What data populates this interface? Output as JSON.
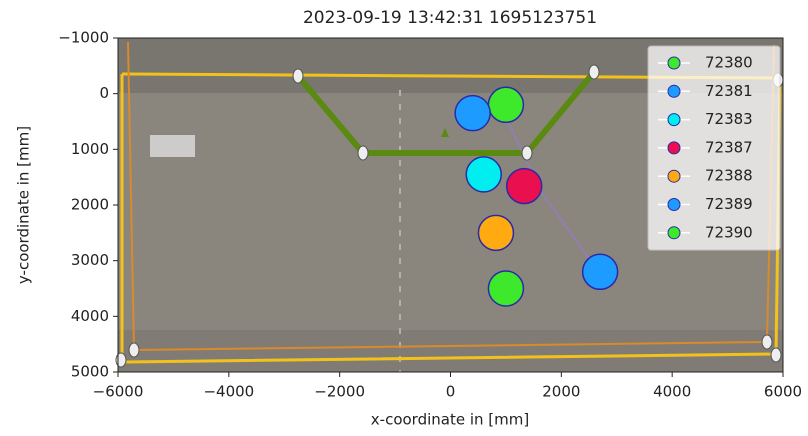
{
  "chart_data": {
    "type": "scatter",
    "title": "2023-09-19 13:42:31 1695123751",
    "x_label": "x-coordinate in [mm]",
    "y_label": "y-coordinate in [mm]",
    "xlim": [
      -6000,
      6000
    ],
    "ylim": [
      -1000,
      5000
    ],
    "y_inverted": true,
    "xticks": [
      {
        "value": -6000,
        "label": "−6000"
      },
      {
        "value": -4000,
        "label": "−4000"
      },
      {
        "value": -2000,
        "label": "−2000"
      },
      0,
      2000,
      4000,
      6000
    ],
    "yticks": [
      {
        "value": -1000,
        "label": "−1000"
      },
      0,
      1000,
      2000,
      3000,
      4000,
      5000
    ],
    "legend": "upper right",
    "series": [
      {
        "name": "72380",
        "color": "#3ee82a",
        "x": [
          1000
        ],
        "values": [
          200
        ]
      },
      {
        "name": "72381",
        "color": "#1e9bff",
        "x": [
          400
        ],
        "values": [
          350
        ]
      },
      {
        "name": "72383",
        "color": "#00eef0",
        "x": [
          600
        ],
        "values": [
          1450
        ]
      },
      {
        "name": "72387",
        "color": "#ea0f4e",
        "x": [
          1330
        ],
        "values": [
          1660
        ]
      },
      {
        "name": "72388",
        "color": "#ffaa11",
        "x": [
          820
        ],
        "values": [
          2500
        ]
      },
      {
        "name": "72389",
        "color": "#1e9bff",
        "x": [
          2700
        ],
        "values": [
          3200
        ]
      },
      {
        "name": "72390",
        "color": "#3ee82a",
        "x": [
          1000
        ],
        "values": [
          3500
        ]
      }
    ]
  }
}
